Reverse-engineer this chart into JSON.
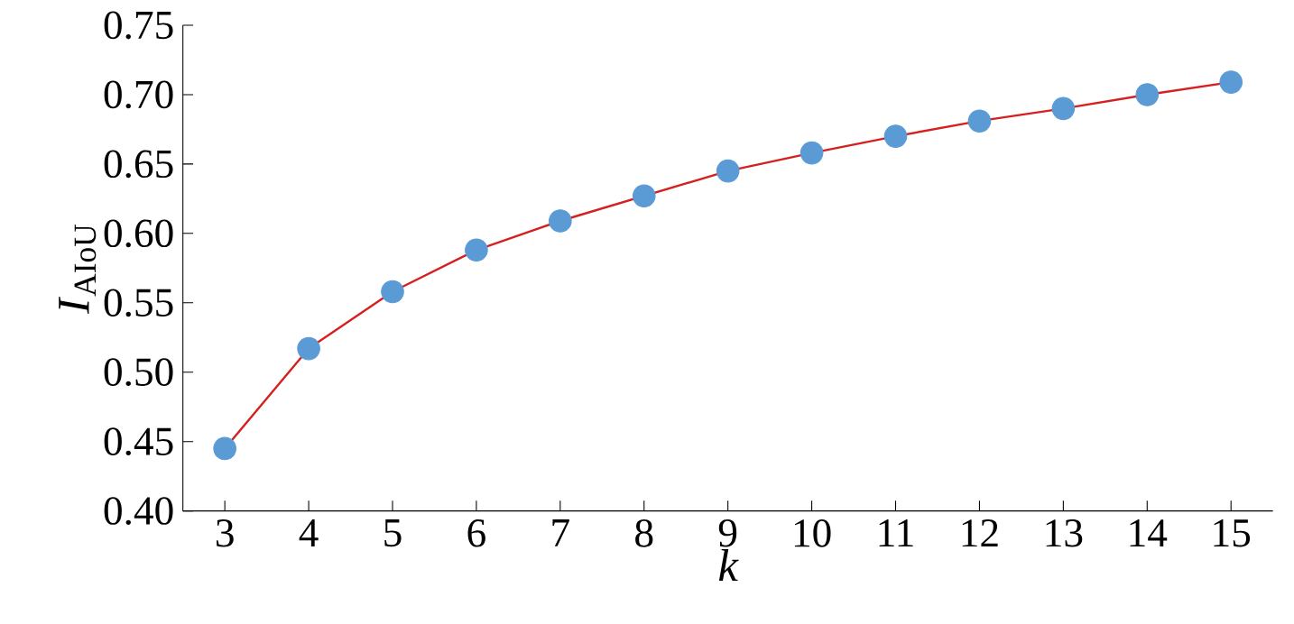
{
  "chart_data": {
    "type": "line",
    "xlabel": "k",
    "ylabel": "*I*$_{AIoU}$",
    "x": [
      3,
      4,
      5,
      6,
      7,
      8,
      9,
      10,
      11,
      12,
      13,
      14,
      15
    ],
    "series": [
      {
        "color": "#d62020",
        "colors": [
          "#5b9bd5",
          "#5b9bd5",
          "#5b9bd5",
          "#5b9bd5",
          "#5b9bd5",
          "#5b9bd5",
          "#5b9bd5",
          "#5b9bd5",
          "#5b9bd5",
          "#5b9bd5",
          "#5b9bd5",
          "#5b9bd5",
          "#5b9bd5"
        ],
        "values": [
          0.445,
          0.517,
          0.558,
          0.588,
          0.609,
          0.627,
          0.645,
          0.658,
          0.67,
          0.681,
          0.69,
          0.7,
          0.709
        ]
      }
    ],
    "marker": "circle",
    "line_style": "solid",
    "xlim": [
      2.5,
      15.5
    ],
    "xticks": [
      3,
      4,
      5,
      6,
      7,
      8,
      9,
      10,
      11,
      12,
      13,
      14,
      15
    ],
    "ylim": [
      0.4,
      0.75
    ],
    "yticks": [
      {
        "value": 0.4,
        "label": "0.40"
      },
      {
        "value": 0.45,
        "label": "0.45"
      },
      {
        "value": 0.5,
        "label": "0.50"
      },
      {
        "value": 0.55,
        "label": "0.55"
      },
      {
        "value": 0.6,
        "label": "0.60"
      },
      {
        "value": 0.65,
        "label": "0.65"
      },
      {
        "value": 0.7,
        "label": "0.70"
      },
      {
        "value": 0.75,
        "label": "0.75"
      }
    ],
    "grid": false
  }
}
